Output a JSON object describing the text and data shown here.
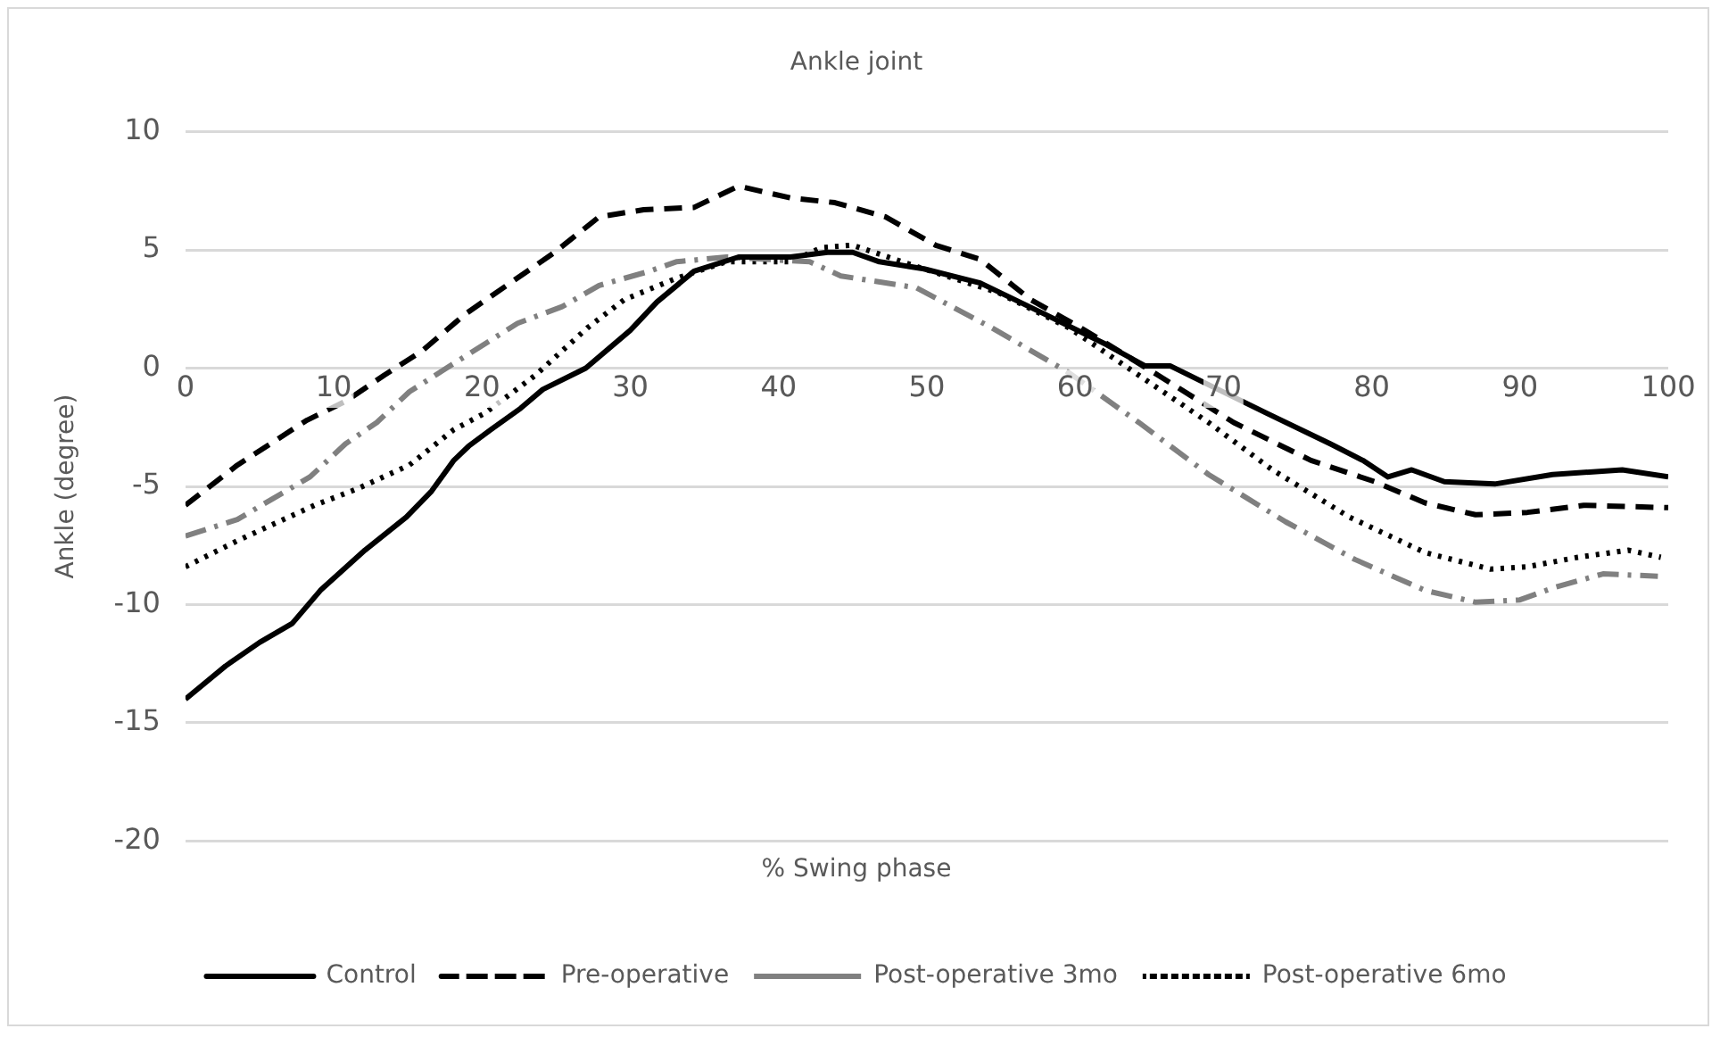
{
  "chart_data": {
    "type": "line",
    "title": "Ankle joint",
    "xlabel": "% Swing phase",
    "ylabel": "Ankle (degree)",
    "xlim": [
      0,
      100
    ],
    "xticks": [
      0,
      10,
      20,
      30,
      40,
      50,
      60,
      70,
      80,
      90,
      100
    ],
    "ylim": [
      -20,
      10
    ],
    "yticks": [
      -20,
      -15,
      -10,
      -5,
      0,
      5,
      10
    ],
    "grid": "y",
    "legend": "bottom",
    "marker": "none",
    "series": [
      {
        "name": "Control",
        "color": "#000000",
        "line_style": "solid",
        "x": [
          0,
          2.7,
          5,
          7.2,
          9.1,
          12.1,
          14.9,
          16.6,
          18.1,
          19.1,
          20.6,
          22.6,
          24.1,
          27,
          30,
          31.8,
          34.3,
          37.3,
          40.8,
          43.3,
          45,
          46.8,
          49.8,
          53.6,
          57.9,
          62.1,
          64.7,
          66.4,
          69,
          72.9,
          77.2,
          79.4,
          81.1,
          82.7,
          84.9,
          88.3,
          92.2,
          96.9,
          100
        ],
        "values": [
          -14,
          -12.6,
          -11.6,
          -10.8,
          -9.4,
          -7.7,
          -6.3,
          -5.2,
          -3.9,
          -3.3,
          -2.6,
          -1.7,
          -0.9,
          0,
          1.6,
          2.8,
          4.1,
          4.7,
          4.7,
          4.9,
          4.9,
          4.5,
          4.2,
          3.6,
          2.3,
          1,
          0.1,
          0.1,
          -0.7,
          -1.9,
          -3.2,
          -3.9,
          -4.6,
          -4.3,
          -4.8,
          -4.9,
          -4.5,
          -4.3,
          -4.6
        ]
      },
      {
        "name": "Pre-operative",
        "color": "#000000",
        "line_style": "dashed",
        "x": [
          0,
          3.5,
          8.2,
          10.8,
          13.4,
          15.9,
          18.9,
          21.9,
          24.9,
          27.9,
          30.9,
          34.3,
          37.3,
          40.8,
          43.8,
          47.2,
          50.6,
          53.6,
          57,
          60.4,
          65.6,
          70.7,
          75.9,
          80.2,
          83.6,
          87,
          90.5,
          94.3,
          100
        ],
        "values": [
          -5.8,
          -4.1,
          -2.2,
          -1.4,
          -0.3,
          0.7,
          2.3,
          3.6,
          4.9,
          6.4,
          6.7,
          6.8,
          7.7,
          7.2,
          7,
          6.4,
          5.2,
          4.6,
          2.9,
          1.7,
          -0.3,
          -2.3,
          -3.9,
          -4.8,
          -5.7,
          -6.2,
          -6.1,
          -5.8,
          -5.9
        ]
      },
      {
        "name": "Post-operative 3mo",
        "color": "#808080",
        "line_style": "dashdot",
        "x": [
          0,
          3.5,
          8.4,
          10.8,
          12.9,
          15.1,
          17.6,
          22.4,
          25.4,
          27.9,
          31.3,
          33.1,
          36.5,
          42.1,
          44.2,
          49.3,
          54.4,
          59.6,
          64.3,
          69,
          74.2,
          78.9,
          83.6,
          87,
          90,
          92.2,
          95.6,
          99.3
        ],
        "values": [
          -7.1,
          -6.4,
          -4.6,
          -3.2,
          -2.3,
          -1,
          0,
          1.9,
          2.6,
          3.5,
          4.1,
          4.5,
          4.7,
          4.5,
          3.9,
          3.4,
          1.7,
          -0.2,
          -2.3,
          -4.5,
          -6.5,
          -8.1,
          -9.4,
          -9.9,
          -9.8,
          -9.3,
          -8.7,
          -8.8
        ]
      },
      {
        "name": "Post-operative 6mo",
        "color": "#000000",
        "line_style": "dotted",
        "x": [
          0,
          3.5,
          8.7,
          11.6,
          15.1,
          18.1,
          20.2,
          23.6,
          27.1,
          29.6,
          33.1,
          36.5,
          40.8,
          42.9,
          45,
          49.3,
          54.8,
          59.6,
          64.3,
          69,
          73.3,
          78.5,
          83.6,
          88,
          90.5,
          93.9,
          97.3,
          99.5
        ],
        "values": [
          -8.4,
          -7.3,
          -5.8,
          -5.1,
          -4.1,
          -2.6,
          -1.9,
          -0.3,
          1.7,
          2.9,
          3.8,
          4.5,
          4.5,
          5.1,
          5.2,
          4.3,
          3.2,
          1.7,
          -0.3,
          -2.3,
          -4.3,
          -6.3,
          -7.8,
          -8.5,
          -8.4,
          -8,
          -7.7,
          -8
        ]
      }
    ]
  }
}
